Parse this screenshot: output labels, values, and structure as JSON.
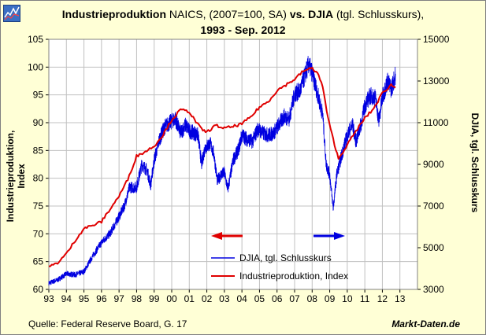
{
  "title": {
    "bold1": "Industrieproduktion",
    "part2": " NAICS, (2007=100, SA) ",
    "bold2": "vs. DJIA",
    "part3": " (tgl. Schlusskurs),",
    "line2": "1993 - Sep. 2012"
  },
  "footer": {
    "source": "Quelle: Federal Reserve Board, G. 17",
    "brand": "Markt-Daten.de"
  },
  "colors": {
    "background": "#FFFFD6",
    "plot_background": "#FFFFFF",
    "series_djia": "#0000E0",
    "series_ip": "#E00000"
  },
  "icons": {
    "logo": "chart-logo-icon"
  },
  "chart_data": {
    "type": "line",
    "title": "Industrieproduktion NAICS, (2007=100, SA) vs. DJIA (tgl. Schlusskurs), 1993 - Sep. 2012",
    "xlabel": "",
    "ylabel": "Industrieproduktion, Index",
    "ylabel2": "DJIA, tgl. Schlusskurs",
    "xlim": [
      1993,
      2014
    ],
    "ylim": [
      60,
      105
    ],
    "ylim2": [
      3000,
      15000
    ],
    "x_tick_labels": [
      "93",
      "94",
      "95",
      "96",
      "97",
      "98",
      "99",
      "00",
      "01",
      "02",
      "03",
      "04",
      "05",
      "06",
      "07",
      "08",
      "09",
      "10",
      "11",
      "12",
      "13"
    ],
    "y_ticks": [
      60,
      65,
      70,
      75,
      80,
      85,
      90,
      95,
      100,
      105
    ],
    "y2_ticks": [
      3000,
      5000,
      7000,
      9000,
      11000,
      13000,
      15000
    ],
    "grid": true,
    "legend_position": "bottom-center",
    "annotations": [
      {
        "type": "arrow",
        "direction": "left",
        "color": "#E00000",
        "meaning": "Industrieproduktion uses left axis"
      },
      {
        "type": "arrow",
        "direction": "right",
        "color": "#0000E0",
        "meaning": "DJIA uses right axis"
      }
    ],
    "series": [
      {
        "name": "DJIA, tgl. Schlusskurs",
        "axis": "right",
        "color": "#0000E0",
        "x": [
          1993.0,
          1993.5,
          1994.0,
          1994.5,
          1995.0,
          1995.5,
          1996.0,
          1996.5,
          1997.0,
          1997.3,
          1997.6,
          1998.0,
          1998.3,
          1998.6,
          1998.8,
          1999.0,
          1999.3,
          1999.6,
          1999.9,
          2000.2,
          2000.5,
          2000.8,
          2001.0,
          2001.3,
          2001.5,
          2001.7,
          2001.9,
          2002.2,
          2002.4,
          2002.6,
          2002.8,
          2003.0,
          2003.2,
          2003.5,
          2003.8,
          2004.0,
          2004.3,
          2004.6,
          2004.9,
          2005.2,
          2005.5,
          2005.8,
          2006.1,
          2006.4,
          2006.7,
          2007.0,
          2007.3,
          2007.6,
          2007.8,
          2008.0,
          2008.3,
          2008.6,
          2008.8,
          2009.0,
          2009.2,
          2009.4,
          2009.7,
          2010.0,
          2010.3,
          2010.5,
          2010.8,
          2011.0,
          2011.3,
          2011.6,
          2011.8,
          2012.0,
          2012.3,
          2012.5,
          2012.75
        ],
        "values": [
          3300,
          3450,
          3750,
          3700,
          3850,
          4600,
          5250,
          5700,
          6500,
          7000,
          7900,
          7900,
          9000,
          8700,
          8000,
          9200,
          10200,
          10800,
          11000,
          11200,
          10500,
          10900,
          10600,
          10500,
          10400,
          9000,
          9800,
          10000,
          9500,
          8200,
          8500,
          8600,
          7800,
          9200,
          9700,
          10400,
          10200,
          10100,
          10700,
          10500,
          10400,
          10500,
          10900,
          11300,
          11200,
          12400,
          12500,
          13300,
          13800,
          13400,
          12400,
          11400,
          9000,
          8500,
          6900,
          8500,
          9500,
          10400,
          10900,
          10100,
          11000,
          11800,
          12300,
          12200,
          11100,
          12200,
          13000,
          12600,
          13300
        ]
      },
      {
        "name": "Industrieproduktion, Index",
        "axis": "left",
        "color": "#E00000",
        "x": [
          1993.0,
          1993.5,
          1994.0,
          1994.5,
          1995.0,
          1995.5,
          1996.0,
          1996.5,
          1997.0,
          1997.5,
          1998.0,
          1998.5,
          1999.0,
          1999.5,
          2000.0,
          2000.5,
          2001.0,
          2001.3,
          2001.7,
          2002.0,
          2002.5,
          2003.0,
          2003.5,
          2004.0,
          2004.5,
          2005.0,
          2005.5,
          2006.0,
          2006.5,
          2007.0,
          2007.5,
          2008.0,
          2008.3,
          2008.6,
          2008.9,
          2009.2,
          2009.5,
          2010.0,
          2010.5,
          2011.0,
          2011.5,
          2012.0,
          2012.5,
          2012.75
        ],
        "values": [
          64.0,
          64.8,
          66.4,
          68.8,
          71.0,
          71.5,
          72.2,
          74.5,
          76.8,
          79.8,
          84.0,
          84.8,
          85.8,
          87.8,
          90.5,
          92.3,
          92.0,
          90.5,
          88.8,
          88.3,
          89.5,
          89.0,
          89.3,
          89.8,
          91.0,
          92.8,
          93.8,
          95.8,
          96.8,
          97.8,
          99.3,
          99.8,
          99.0,
          96.5,
          90.8,
          87.0,
          83.5,
          86.0,
          88.5,
          90.8,
          92.5,
          95.3,
          96.8,
          96.3
        ]
      }
    ],
    "legend": [
      "DJIA, tgl. Schlusskurs",
      "Industrieproduktion, Index"
    ]
  }
}
